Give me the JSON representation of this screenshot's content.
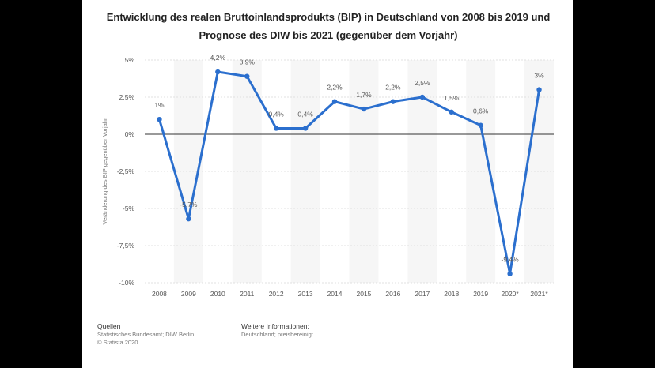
{
  "title": "Entwicklung des realen Bruttoinlandsprodukts (BIP) in Deutschland von 2008 bis 2019 und Prognose des DIW bis 2021 (gegenüber dem Vorjahr)",
  "chart_data": {
    "type": "line",
    "title": "Entwicklung des realen Bruttoinlandsprodukts (BIP) in Deutschland von 2008 bis 2019 und Prognose des DIW bis 2021 (gegenüber dem Vorjahr)",
    "xlabel": "",
    "ylabel": "Veränderung des BIP gegenüber Vorjahr",
    "categories": [
      "2008",
      "2009",
      "2010",
      "2011",
      "2012",
      "2013",
      "2014",
      "2015",
      "2016",
      "2017",
      "2018",
      "2019",
      "2020*",
      "2021*"
    ],
    "series": [
      {
        "values": [
          1.0,
          -5.7,
          4.2,
          3.9,
          0.4,
          0.4,
          2.2,
          1.7,
          2.2,
          2.5,
          1.5,
          0.6,
          -9.4,
          3.0
        ],
        "labels": [
          "1%",
          "-5,7%",
          "4,2%",
          "3,9%",
          "0,4%",
          "0,4%",
          "2,2%",
          "1,7%",
          "2,2%",
          "2,5%",
          "1,5%",
          "0,6%",
          "-9,4%",
          "3%"
        ]
      }
    ],
    "ylim": [
      -10,
      5
    ],
    "yticks": [
      5,
      2.5,
      0,
      -2.5,
      -5,
      -7.5,
      -10
    ],
    "ytick_labels": [
      "5%",
      "2,5%",
      "0%",
      "-2,5%",
      "-5%",
      "-7,5%",
      "-10%"
    ],
    "grid": true,
    "line_color": "#2b6fce"
  },
  "footer": {
    "sources_heading": "Quellen",
    "sources_line1": "Statistisches Bundesamt; DIW Berlin",
    "sources_line2": "© Statista 2020",
    "info_heading": "Weitere Informationen:",
    "info_line1": "Deutschland; preisbereinigt"
  }
}
